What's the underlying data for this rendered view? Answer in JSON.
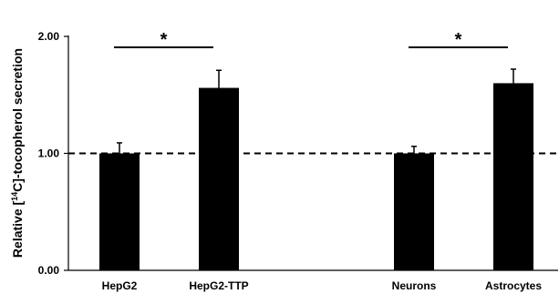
{
  "chart_data": {
    "type": "bar",
    "categories": [
      "HepG2",
      "HepG2-TTP",
      "Neurons",
      "Astrocytes"
    ],
    "values": [
      1.0,
      1.56,
      1.0,
      1.6
    ],
    "errors": [
      0.09,
      0.15,
      0.06,
      0.12
    ],
    "bar_color": "#000000",
    "ylabel_pre": "Relative [",
    "ylabel_sup": "14",
    "ylabel_post": "C]-tocopherol secretion",
    "ylim": [
      0,
      2
    ],
    "yticks": [
      {
        "value": 0,
        "label": "0.00"
      },
      {
        "value": 1,
        "label": "1.00"
      },
      {
        "value": 2,
        "label": "2.00"
      }
    ],
    "reference_line": {
      "value": 1.0,
      "style": "dashed"
    },
    "significance": [
      {
        "from": 0,
        "to": 1,
        "label": "*"
      },
      {
        "from": 2,
        "to": 3,
        "label": "*"
      }
    ]
  }
}
